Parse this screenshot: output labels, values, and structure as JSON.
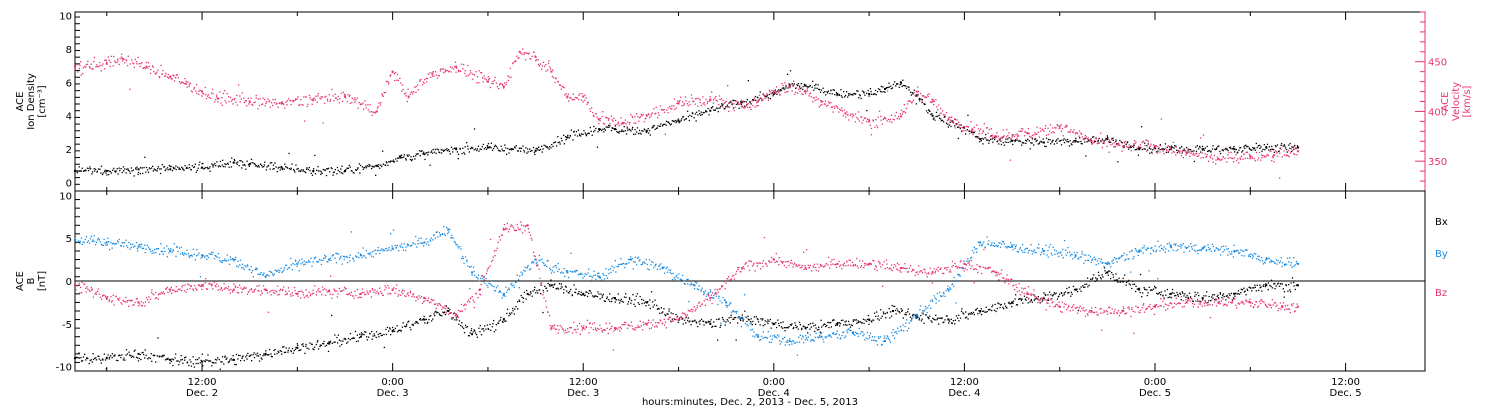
{
  "colors": {
    "black": "#000000",
    "red": "#e8346e",
    "blue": "#1a8be0",
    "axis": "#000000"
  },
  "x_axis": {
    "title": "hours:minutes, Dec.  2, 2013 - Dec.  5, 2013",
    "range_hours": [
      4.0,
      89.0
    ],
    "ticks": [
      {
        "hours": 12,
        "time": "12:00",
        "day": "Dec. 2"
      },
      {
        "hours": 24,
        "time": "0:00",
        "day": "Dec. 3"
      },
      {
        "hours": 36,
        "time": "12:00",
        "day": "Dec. 3"
      },
      {
        "hours": 48,
        "time": "0:00",
        "day": "Dec. 4"
      },
      {
        "hours": 60,
        "time": "12:00",
        "day": "Dec. 4"
      },
      {
        "hours": 72,
        "time": "0:00",
        "day": "Dec. 5"
      },
      {
        "hours": 84,
        "time": "12:00",
        "day": "Dec. 5"
      }
    ]
  },
  "chart_data": [
    {
      "type": "scatter",
      "panel": "top",
      "ylabel": [
        "ACE",
        "Ion Density",
        "[cm⁻³]"
      ],
      "ylim": [
        -0.5,
        10.2
      ],
      "yticks": [
        0,
        2,
        4,
        6,
        8,
        10
      ],
      "ylabel_right": [
        "ACE",
        "Velocity",
        "[km/s]"
      ],
      "ylim_right": [
        320,
        500
      ],
      "yticks_right": [
        350,
        400,
        450
      ],
      "series": [
        {
          "color": "black",
          "axis": "left",
          "x": [
            4.0,
            6.0,
            8.0,
            10.0,
            12.0,
            14.0,
            15.0,
            17.0,
            19.0,
            21.0,
            23.0,
            24.5,
            26.0,
            28.0,
            30.0,
            31.5,
            33.0,
            35.0,
            37.0,
            38.0,
            40.0,
            42.0,
            44.0,
            46.0,
            48.0,
            49.0,
            50.0,
            52.0,
            54.0,
            55.0,
            56.0,
            57.0,
            58.0,
            59.5,
            61.0,
            63.0,
            65.0,
            67.0,
            69.0,
            71.0,
            73.0,
            75.0,
            77.0,
            79.0,
            81.0
          ],
          "values": [
            0.7,
            0.7,
            0.8,
            0.8,
            0.9,
            1.2,
            1.1,
            0.9,
            0.7,
            0.7,
            1.0,
            1.5,
            1.7,
            2.0,
            2.1,
            2.0,
            1.9,
            2.7,
            3.2,
            3.2,
            3.1,
            3.7,
            4.3,
            4.8,
            5.3,
            5.8,
            5.8,
            5.3,
            5.3,
            5.6,
            6.0,
            5.2,
            4.0,
            3.5,
            2.6,
            2.5,
            2.4,
            2.5,
            2.6,
            2.0,
            2.0,
            2.0,
            2.0,
            2.1,
            2.1
          ]
        },
        {
          "color": "red",
          "axis": "right",
          "x": [
            4.0,
            6.0,
            7.0,
            8.5,
            10.0,
            11.0,
            12.0,
            13.0,
            15.0,
            17.0,
            19.0,
            21.0,
            23.0,
            24.0,
            25.0,
            26.5,
            28.0,
            30.0,
            31.0,
            32.0,
            33.0,
            34.0,
            35.0,
            36.0,
            37.0,
            38.5,
            40.0,
            42.0,
            44.0,
            46.0,
            47.0,
            48.0,
            49.0,
            50.0,
            51.0,
            52.5,
            54.0,
            56.0,
            57.0,
            58.0,
            59.0,
            60.5,
            62.0,
            64.0,
            66.0,
            68.0,
            70.0,
            72.0,
            74.0,
            76.0,
            78.0,
            79.5,
            81.0
          ],
          "values": [
            445,
            448,
            453,
            445,
            435,
            428,
            420,
            413,
            410,
            408,
            412,
            415,
            400,
            440,
            415,
            438,
            445,
            430,
            425,
            460,
            455,
            440,
            415,
            415,
            392,
            388,
            396,
            408,
            412,
            405,
            410,
            420,
            425,
            420,
            410,
            398,
            390,
            395,
            420,
            410,
            392,
            382,
            375,
            378,
            385,
            370,
            365,
            365,
            358,
            352,
            355,
            356,
            360
          ]
        }
      ]
    },
    {
      "type": "scatter",
      "panel": "bottom",
      "ylabel": [
        "ACE",
        "B",
        "[nT]"
      ],
      "ylim": [
        -10.5,
        10.5
      ],
      "yticks": [
        -10,
        -5,
        0,
        5,
        10
      ],
      "zero_line": true,
      "legend": [
        "Bx",
        "By",
        "Bz"
      ],
      "series": [
        {
          "name": "Bx",
          "color": "black",
          "x": [
            4.0,
            6.0,
            8.0,
            10.0,
            12.0,
            14.0,
            16.0,
            18.0,
            20.0,
            22.0,
            24.0,
            26.0,
            27.5,
            29.0,
            31.0,
            32.5,
            34.0,
            36.0,
            38.0,
            40.0,
            42.0,
            44.0,
            46.0,
            48.0,
            50.0,
            52.0,
            54.0,
            55.5,
            57.0,
            59.0,
            61.0,
            63.0,
            65.0,
            67.0,
            69.0,
            71.0,
            73.0,
            75.0,
            77.0,
            79.0,
            81.0
          ],
          "values": [
            -9.0,
            -9.0,
            -8.5,
            -9.2,
            -9.4,
            -9.2,
            -8.5,
            -7.8,
            -7.3,
            -6.5,
            -5.8,
            -4.5,
            -3.5,
            -6.2,
            -4.5,
            -1.5,
            -0.5,
            -1.5,
            -2.0,
            -2.5,
            -4.5,
            -5.0,
            -4.3,
            -5.0,
            -5.5,
            -5.0,
            -4.5,
            -3.5,
            -4.2,
            -4.5,
            -3.5,
            -2.5,
            -2.0,
            -1.0,
            1.0,
            -1.0,
            -1.5,
            -2.0,
            -1.5,
            -0.5,
            -0.5
          ]
        },
        {
          "name": "By",
          "color": "blue",
          "x": [
            4.0,
            6.0,
            8.0,
            10.0,
            12.0,
            14.0,
            16.0,
            18.0,
            20.0,
            22.0,
            24.0,
            26.0,
            27.5,
            29.0,
            31.0,
            33.0,
            35.0,
            37.0,
            39.0,
            41.0,
            43.0,
            45.0,
            47.0,
            49.0,
            51.0,
            53.0,
            55.0,
            57.0,
            59.0,
            61.0,
            63.0,
            65.0,
            67.0,
            69.0,
            71.0,
            73.0,
            75.0,
            77.0,
            79.0,
            81.0
          ],
          "values": [
            4.8,
            4.5,
            4.0,
            3.5,
            3.0,
            2.5,
            0.5,
            2.0,
            2.5,
            3.0,
            3.8,
            4.5,
            6.0,
            1.0,
            -1.5,
            2.5,
            1.0,
            0.5,
            2.5,
            1.5,
            -0.5,
            -2.5,
            -6.5,
            -7.0,
            -6.5,
            -6.0,
            -7.0,
            -4.0,
            -1.0,
            4.5,
            4.0,
            3.5,
            3.0,
            2.0,
            3.5,
            4.0,
            3.8,
            3.5,
            2.5,
            2.0
          ]
        },
        {
          "name": "Bz",
          "color": "red",
          "x": [
            4.0,
            6.0,
            8.0,
            10.0,
            12.0,
            14.0,
            16.0,
            18.0,
            20.0,
            22.0,
            24.0,
            26.0,
            28.0,
            29.5,
            31.0,
            32.5,
            34.0,
            36.0,
            38.0,
            40.0,
            42.0,
            44.0,
            46.0,
            48.0,
            50.0,
            52.0,
            54.0,
            56.0,
            58.0,
            60.0,
            62.0,
            64.0,
            66.0,
            68.0,
            70.0,
            72.0,
            74.0,
            76.0,
            78.0,
            80.0,
            81.0
          ],
          "values": [
            -0.5,
            -2.0,
            -2.5,
            -1.0,
            -0.5,
            -1.0,
            -1.0,
            -1.5,
            -1.2,
            -1.5,
            -1.0,
            -2.0,
            -4.0,
            -1.0,
            6.0,
            6.5,
            -5.5,
            -5.5,
            -5.5,
            -5.0,
            -4.5,
            -2.0,
            1.5,
            2.5,
            1.5,
            2.0,
            2.0,
            1.5,
            1.0,
            2.0,
            1.0,
            -1.5,
            -3.0,
            -3.5,
            -3.5,
            -3.0,
            -2.5,
            -2.5,
            -2.5,
            -3.0,
            -3.0
          ]
        }
      ]
    }
  ]
}
